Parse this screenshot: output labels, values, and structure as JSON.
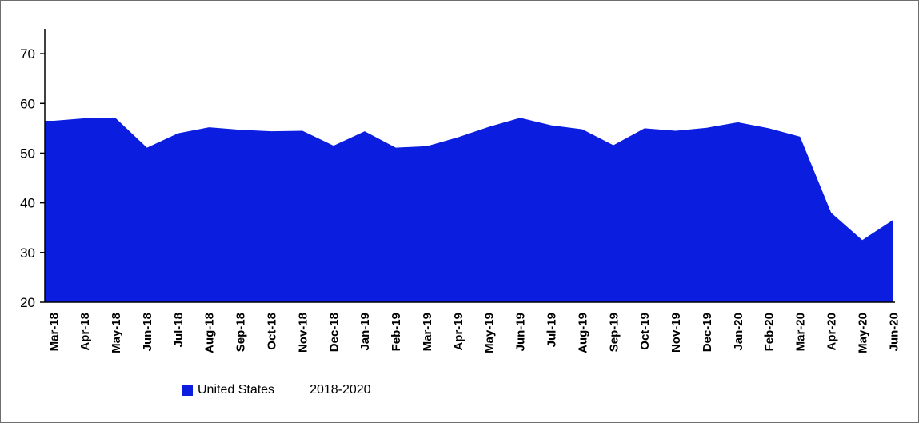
{
  "chart_data": {
    "type": "area",
    "title": "",
    "xlabel": "",
    "ylabel": "",
    "categories": [
      "Mar-18",
      "Apr-18",
      "May-18",
      "Jun-18",
      "Jul-18",
      "Aug-18",
      "Sep-18",
      "Oct-18",
      "Nov-18",
      "Dec-18",
      "Jan-19",
      "Feb-19",
      "Mar-19",
      "Apr-19",
      "May-19",
      "Jun-19",
      "Jul-19",
      "Aug-19",
      "Sep-19",
      "Oct-19",
      "Nov-19",
      "Dec-19",
      "Jan-20",
      "Feb-20",
      "Mar-20",
      "Apr-20",
      "May-20",
      "Jun-20"
    ],
    "series": [
      {
        "name": "United States",
        "values": [
          56.5,
          57.0,
          57.0,
          51.1,
          54.0,
          55.2,
          54.7,
          54.4,
          54.5,
          51.5,
          54.4,
          51.1,
          51.4,
          53.2,
          55.3,
          57.1,
          55.6,
          54.8,
          51.6,
          55.0,
          54.5,
          55.1,
          56.2,
          55.0,
          53.3,
          38.0,
          32.5,
          36.6
        ]
      }
    ],
    "ylim": [
      20,
      75
    ],
    "yticks": [
      20,
      30,
      40,
      50,
      60,
      70
    ],
    "area_color": "#0b1ee0",
    "axis_color": "#000000",
    "grid": false,
    "legend": {
      "position": "bottom",
      "series_label": "United States",
      "period_label": "2018-2020"
    }
  }
}
